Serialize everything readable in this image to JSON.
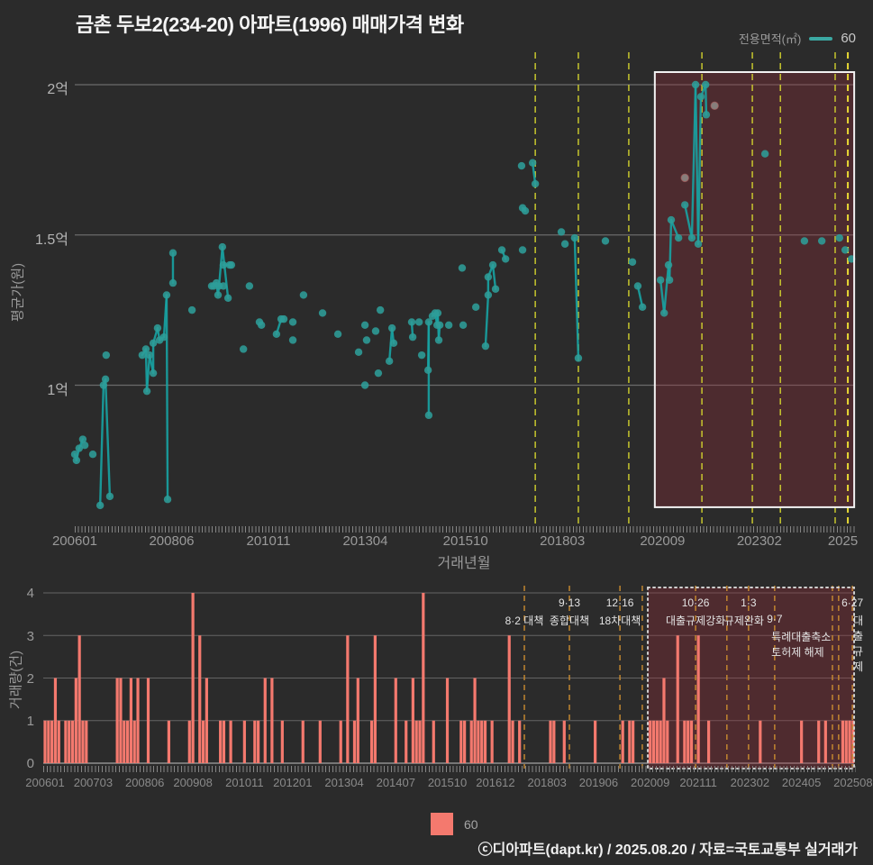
{
  "title": "금촌 두보2(234-20) 아파트(1996) 매매가격 변화",
  "legend_top": {
    "label": "전용면적(㎡)",
    "series": "60"
  },
  "legend_bottom": {
    "series": "60"
  },
  "footer": "ⓒ디아파트(dapt.kr) / 2025.08.20 / 자료=국토교통부 실거래가",
  "colors": {
    "background": "#2b2b2b",
    "marker": "#2E9D99",
    "line": "#18A3A3",
    "bar": "#F4796E",
    "policy_dash_top": "#CFCF2E",
    "policy_dash_bright": "#F2E335",
    "policy_dash_bottom": "#C98B30",
    "highlight_fill": "#9b2a38",
    "highlight_border": "#F2F2F2",
    "grid": "#6b6b6b",
    "muted_marker": "#8E8784"
  },
  "chart_data": [
    {
      "type": "scatter",
      "name": "price-history",
      "ylabel": "평균가(원)",
      "xlabel": "거래년월",
      "month_base": "200601",
      "ylim": [
        0.55,
        2.1
      ],
      "y_ticks": [
        {
          "v": 2.0,
          "label": "2억"
        },
        {
          "v": 1.5,
          "label": "1.5억"
        },
        {
          "v": 1.0,
          "label": "1억"
        }
      ],
      "x_ticks": [
        {
          "m": 0,
          "label": "200601"
        },
        {
          "m": 29,
          "label": "200806"
        },
        {
          "m": 58,
          "label": "201011"
        },
        {
          "m": 87,
          "label": "201304"
        },
        {
          "m": 117,
          "label": "201510"
        },
        {
          "m": 146,
          "label": "201803"
        },
        {
          "m": 176,
          "label": "202009"
        },
        {
          "m": 205,
          "label": "202302"
        },
        {
          "m": 230,
          "label": "2025"
        }
      ],
      "policy_lines": [
        {
          "m": 137.9
        },
        {
          "m": 150.8
        },
        {
          "m": 165.9
        },
        {
          "m": 187.8
        },
        {
          "m": 202.9
        },
        {
          "m": 211.3
        },
        {
          "m": 227.7
        },
        {
          "m": 231.5,
          "bright": true
        }
      ],
      "highlight": {
        "m0": 173.7,
        "m1": 233.4,
        "p0": 0.594,
        "p1": 2.042
      },
      "points": [
        [
          0,
          0.77,
          0
        ],
        [
          0.5,
          0.75,
          1
        ],
        [
          1.3,
          0.79,
          1
        ],
        [
          2.4,
          0.82,
          1
        ],
        [
          3,
          0.8,
          0
        ],
        [
          5.4,
          0.77,
          0
        ],
        [
          7.6,
          0.6,
          0
        ],
        [
          8.6,
          1.0,
          1
        ],
        [
          9.2,
          1.02,
          1
        ],
        [
          10.5,
          0.63,
          1
        ],
        [
          9.4,
          1.1,
          0
        ],
        [
          20.2,
          1.1,
          0
        ],
        [
          21.3,
          1.12,
          1
        ],
        [
          21.6,
          0.98,
          1
        ],
        [
          22.4,
          1.1,
          1
        ],
        [
          23.5,
          1.04,
          1
        ],
        [
          23.5,
          1.14,
          1
        ],
        [
          24.8,
          1.19,
          1
        ],
        [
          25.4,
          1.15,
          1
        ],
        [
          26.7,
          1.16,
          1
        ],
        [
          27.5,
          1.3,
          1
        ],
        [
          27.8,
          0.62,
          1
        ],
        [
          29.4,
          1.44,
          0
        ],
        [
          29.4,
          1.34,
          1
        ],
        [
          35.1,
          1.25,
          0
        ],
        [
          41,
          1.33,
          0
        ],
        [
          41.6,
          1.33,
          1
        ],
        [
          42.4,
          1.34,
          1
        ],
        [
          42.9,
          1.3,
          1
        ],
        [
          43.2,
          1.33,
          1
        ],
        [
          44.2,
          1.46,
          1
        ],
        [
          45.9,
          1.29,
          1
        ],
        [
          44.5,
          1.33,
          0
        ],
        [
          44.5,
          1.4,
          0
        ],
        [
          46.4,
          1.4,
          1
        ],
        [
          46.9,
          1.4,
          1
        ],
        [
          50.5,
          1.12,
          0
        ],
        [
          52.3,
          1.33,
          0
        ],
        [
          55.3,
          1.21,
          0
        ],
        [
          55.9,
          1.2,
          0
        ],
        [
          60.4,
          1.17,
          0
        ],
        [
          61.8,
          1.22,
          1
        ],
        [
          62.6,
          1.22,
          0
        ],
        [
          65.3,
          1.21,
          0
        ],
        [
          65.3,
          1.15,
          0
        ],
        [
          68.5,
          1.3,
          0
        ],
        [
          74.2,
          1.24,
          0
        ],
        [
          78.8,
          1.17,
          0
        ],
        [
          85,
          1.11,
          0
        ],
        [
          86.9,
          1.2,
          0
        ],
        [
          86.9,
          1.0,
          0
        ],
        [
          87.4,
          1.15,
          0
        ],
        [
          90.1,
          1.18,
          0
        ],
        [
          90.9,
          1.04,
          0
        ],
        [
          91.5,
          1.25,
          0
        ],
        [
          94.2,
          1.08,
          0
        ],
        [
          95,
          1.19,
          1
        ],
        [
          95.5,
          1.14,
          1
        ],
        [
          100.9,
          1.21,
          0
        ],
        [
          101.2,
          1.16,
          1
        ],
        [
          103.1,
          1.21,
          0
        ],
        [
          103.9,
          1.1,
          0
        ],
        [
          105.8,
          1.05,
          0
        ],
        [
          106,
          1.21,
          1
        ],
        [
          106,
          0.9,
          1
        ],
        [
          107.1,
          1.23,
          0
        ],
        [
          107.9,
          1.24,
          1
        ],
        [
          108.5,
          1.2,
          1
        ],
        [
          108.7,
          1.24,
          1
        ],
        [
          109,
          1.15,
          1
        ],
        [
          109.3,
          1.2,
          1
        ],
        [
          112,
          1.2,
          0
        ],
        [
          116,
          1.39,
          0
        ],
        [
          116.3,
          1.2,
          0
        ],
        [
          120.1,
          1.26,
          0
        ],
        [
          123,
          1.13,
          0
        ],
        [
          123.8,
          1.3,
          1
        ],
        [
          123.8,
          1.36,
          1
        ],
        [
          125.2,
          1.4,
          1
        ],
        [
          126,
          1.32,
          1
        ],
        [
          127.9,
          1.45,
          0
        ],
        [
          129,
          1.42,
          1
        ],
        [
          133.8,
          1.73,
          0
        ],
        [
          134.1,
          1.59,
          0
        ],
        [
          134.9,
          1.58,
          1
        ],
        [
          134.1,
          1.45,
          0
        ],
        [
          137.1,
          1.74,
          0
        ],
        [
          137.9,
          1.67,
          1
        ],
        [
          145.7,
          1.51,
          0
        ],
        [
          146.8,
          1.47,
          0
        ],
        [
          149.7,
          1.49,
          0
        ],
        [
          150.8,
          1.09,
          1
        ],
        [
          158.9,
          1.48,
          0
        ],
        [
          167,
          1.41,
          0
        ],
        [
          168.6,
          1.33,
          0
        ],
        [
          170,
          1.26,
          1
        ],
        [
          175.4,
          1.35,
          0
        ],
        [
          176.5,
          1.24,
          1
        ],
        [
          177.8,
          1.4,
          1
        ],
        [
          178.1,
          1.35,
          1
        ],
        [
          178.6,
          1.55,
          1
        ],
        [
          180.8,
          1.49,
          1
        ],
        [
          182.7,
          1.6,
          0
        ],
        [
          184.8,
          1.49,
          1
        ],
        [
          185.9,
          2.0,
          1
        ],
        [
          186.7,
          1.47,
          1
        ],
        [
          187.5,
          1.96,
          1
        ],
        [
          188.9,
          2.0,
          1
        ],
        [
          189.1,
          1.9,
          1
        ],
        [
          206.7,
          1.77,
          0
        ],
        [
          218.5,
          1.48,
          0
        ],
        [
          223.7,
          1.48,
          0
        ],
        [
          229,
          1.49,
          0
        ],
        [
          230.7,
          1.45,
          0
        ],
        [
          232.6,
          1.42,
          0
        ]
      ],
      "muted_points": [
        [
          182.7,
          1.69
        ],
        [
          191.6,
          1.93
        ]
      ]
    },
    {
      "type": "bar",
      "name": "volume-history",
      "ylabel": "거래량(건)",
      "month_base": "200601",
      "ylim": [
        0,
        4
      ],
      "y_ticks": [
        0,
        1,
        2,
        3,
        4
      ],
      "x_ticks": [
        {
          "m": 0,
          "label": "200601"
        },
        {
          "m": 14,
          "label": "200703"
        },
        {
          "m": 29,
          "label": "200806"
        },
        {
          "m": 43,
          "label": "200908"
        },
        {
          "m": 58,
          "label": "201011"
        },
        {
          "m": 72,
          "label": "201201"
        },
        {
          "m": 87,
          "label": "201304"
        },
        {
          "m": 102,
          "label": "201407"
        },
        {
          "m": 117,
          "label": "201510"
        },
        {
          "m": 131,
          "label": "201612"
        },
        {
          "m": 146,
          "label": "201803"
        },
        {
          "m": 161,
          "label": "201906"
        },
        {
          "m": 176,
          "label": "202009"
        },
        {
          "m": 190,
          "label": "202111"
        },
        {
          "m": 205,
          "label": "202302"
        },
        {
          "m": 220,
          "label": "202405"
        },
        {
          "m": 235,
          "label": "202508"
        }
      ],
      "policy_lines": [
        {
          "m": 139.4
        },
        {
          "m": 152.5
        },
        {
          "m": 167.2
        },
        {
          "m": 173.7
        },
        {
          "m": 189.2
        },
        {
          "m": 198.3
        },
        {
          "m": 204.6
        },
        {
          "m": 212.2
        },
        {
          "m": 229.0
        },
        {
          "m": 230.8
        },
        {
          "m": 234.8
        }
      ],
      "annotations": [
        {
          "m": 152.5,
          "row": 1,
          "text": "9·13"
        },
        {
          "m": 167.2,
          "row": 1,
          "text": "12·16"
        },
        {
          "m": 189.2,
          "row": 1,
          "text": "10·26"
        },
        {
          "m": 204.6,
          "row": 1,
          "text": "1·3"
        },
        {
          "m": 234.8,
          "row": 1,
          "text": "6·27"
        },
        {
          "m": 139.4,
          "row": 2,
          "text": "8·2 대책"
        },
        {
          "m": 152.5,
          "row": 2,
          "text": "종합대책"
        },
        {
          "m": 167.2,
          "row": 2,
          "text": "18차대책"
        },
        {
          "m": 189.2,
          "row": 2,
          "text": "대출규제강화"
        },
        {
          "m": 203.3,
          "row": 2,
          "text": "규제완화"
        },
        {
          "m": 212.2,
          "row": 2,
          "text": "9·7"
        },
        {
          "m": 236.5,
          "row": 2,
          "text": "대출규제"
        },
        {
          "m": 220.3,
          "row": 3,
          "text": "특례대출축소 토허제 해제"
        }
      ],
      "highlight": {
        "m0": 175.3,
        "m1": 235.3
      },
      "bars": [
        [
          0,
          1
        ],
        [
          1,
          1
        ],
        [
          2,
          1
        ],
        [
          3,
          2
        ],
        [
          4,
          1
        ],
        [
          6,
          1
        ],
        [
          7,
          1
        ],
        [
          8,
          1
        ],
        [
          9,
          2
        ],
        [
          10,
          3
        ],
        [
          11,
          1
        ],
        [
          12,
          1
        ],
        [
          21,
          2
        ],
        [
          22,
          2
        ],
        [
          23,
          1
        ],
        [
          24,
          1
        ],
        [
          25,
          2
        ],
        [
          26,
          1
        ],
        [
          27,
          2
        ],
        [
          30,
          2
        ],
        [
          36,
          1
        ],
        [
          42,
          1
        ],
        [
          43,
          4
        ],
        [
          45,
          3
        ],
        [
          46,
          1
        ],
        [
          47,
          2
        ],
        [
          51,
          1
        ],
        [
          52,
          1
        ],
        [
          54,
          1
        ],
        [
          58,
          1
        ],
        [
          61,
          1
        ],
        [
          62,
          1
        ],
        [
          64,
          2
        ],
        [
          66,
          2
        ],
        [
          69,
          1
        ],
        [
          75,
          1
        ],
        [
          80,
          1
        ],
        [
          86,
          1
        ],
        [
          88,
          3
        ],
        [
          90,
          1
        ],
        [
          91,
          2
        ],
        [
          95,
          1
        ],
        [
          96,
          3
        ],
        [
          102,
          2
        ],
        [
          105,
          1
        ],
        [
          107,
          2
        ],
        [
          108,
          1
        ],
        [
          109,
          1
        ],
        [
          110,
          4
        ],
        [
          113,
          1
        ],
        [
          117,
          2
        ],
        [
          121,
          1
        ],
        [
          122,
          1
        ],
        [
          124,
          1
        ],
        [
          125,
          2
        ],
        [
          126,
          1
        ],
        [
          127,
          1
        ],
        [
          128,
          1
        ],
        [
          130,
          1
        ],
        [
          135,
          3
        ],
        [
          136,
          1
        ],
        [
          138,
          1
        ],
        [
          147,
          1
        ],
        [
          148,
          1
        ],
        [
          151,
          1
        ],
        [
          160,
          1
        ],
        [
          168,
          1
        ],
        [
          170,
          1
        ],
        [
          171,
          1
        ],
        [
          176,
          1
        ],
        [
          177,
          1
        ],
        [
          178,
          1
        ],
        [
          179,
          1
        ],
        [
          180,
          2
        ],
        [
          181,
          1
        ],
        [
          184,
          3
        ],
        [
          186,
          1
        ],
        [
          187,
          1
        ],
        [
          188,
          1
        ],
        [
          190,
          3
        ],
        [
          193,
          1
        ],
        [
          208,
          1
        ],
        [
          220,
          1
        ],
        [
          225,
          1
        ],
        [
          227,
          1
        ],
        [
          232,
          1
        ],
        [
          233,
          1
        ],
        [
          234,
          1
        ],
        [
          235,
          1
        ]
      ]
    }
  ]
}
